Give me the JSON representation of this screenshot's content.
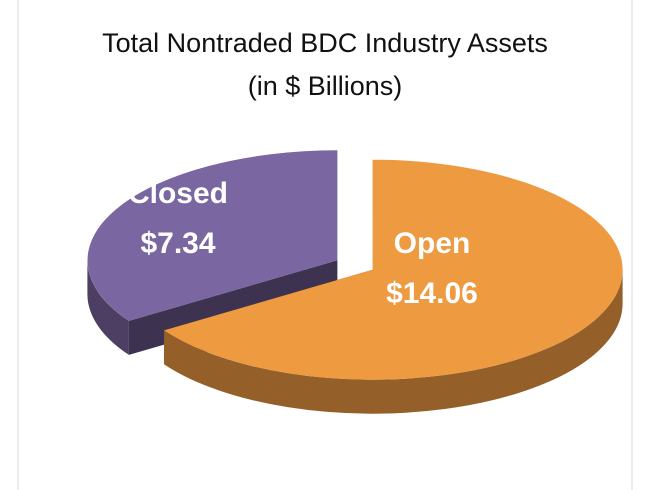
{
  "chart_data": {
    "type": "pie3d",
    "title": "Total Nontraded BDC Industry Assets",
    "subtitle": "(in $ Billions)",
    "categories": [
      "Closed",
      "Open"
    ],
    "values": [
      7.34,
      14.06
    ],
    "value_labels": [
      "$7.34",
      "$14.06"
    ],
    "colors": [
      "#7a66a0",
      "#ee9a40"
    ]
  }
}
